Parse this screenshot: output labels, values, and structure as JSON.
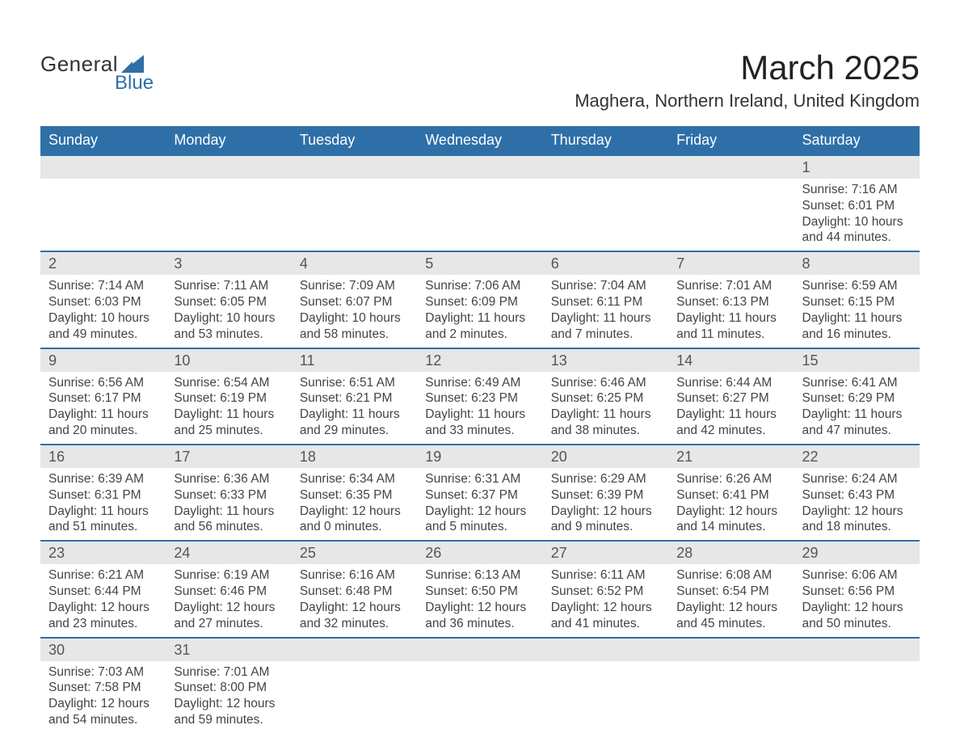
{
  "brand": {
    "top": "General",
    "bottom": "Blue",
    "sail_color": "#2f6fa8",
    "top_color": "#333333",
    "bottom_color": "#2f6fa8"
  },
  "title": "March 2025",
  "location": "Maghera, Northern Ireland, United Kingdom",
  "colors": {
    "header_bg": "#2f6fa8",
    "header_text": "#ffffff",
    "daynum_bg": "#e7e7e7",
    "row_border": "#2f6fa8",
    "body_text": "#444444"
  },
  "headers": [
    "Sunday",
    "Monday",
    "Tuesday",
    "Wednesday",
    "Thursday",
    "Friday",
    "Saturday"
  ],
  "weeks": [
    [
      null,
      null,
      null,
      null,
      null,
      null,
      {
        "n": "1",
        "sunrise": "Sunrise: 7:16 AM",
        "sunset": "Sunset: 6:01 PM",
        "dl1": "Daylight: 10 hours",
        "dl2": "and 44 minutes."
      }
    ],
    [
      {
        "n": "2",
        "sunrise": "Sunrise: 7:14 AM",
        "sunset": "Sunset: 6:03 PM",
        "dl1": "Daylight: 10 hours",
        "dl2": "and 49 minutes."
      },
      {
        "n": "3",
        "sunrise": "Sunrise: 7:11 AM",
        "sunset": "Sunset: 6:05 PM",
        "dl1": "Daylight: 10 hours",
        "dl2": "and 53 minutes."
      },
      {
        "n": "4",
        "sunrise": "Sunrise: 7:09 AM",
        "sunset": "Sunset: 6:07 PM",
        "dl1": "Daylight: 10 hours",
        "dl2": "and 58 minutes."
      },
      {
        "n": "5",
        "sunrise": "Sunrise: 7:06 AM",
        "sunset": "Sunset: 6:09 PM",
        "dl1": "Daylight: 11 hours",
        "dl2": "and 2 minutes."
      },
      {
        "n": "6",
        "sunrise": "Sunrise: 7:04 AM",
        "sunset": "Sunset: 6:11 PM",
        "dl1": "Daylight: 11 hours",
        "dl2": "and 7 minutes."
      },
      {
        "n": "7",
        "sunrise": "Sunrise: 7:01 AM",
        "sunset": "Sunset: 6:13 PM",
        "dl1": "Daylight: 11 hours",
        "dl2": "and 11 minutes."
      },
      {
        "n": "8",
        "sunrise": "Sunrise: 6:59 AM",
        "sunset": "Sunset: 6:15 PM",
        "dl1": "Daylight: 11 hours",
        "dl2": "and 16 minutes."
      }
    ],
    [
      {
        "n": "9",
        "sunrise": "Sunrise: 6:56 AM",
        "sunset": "Sunset: 6:17 PM",
        "dl1": "Daylight: 11 hours",
        "dl2": "and 20 minutes."
      },
      {
        "n": "10",
        "sunrise": "Sunrise: 6:54 AM",
        "sunset": "Sunset: 6:19 PM",
        "dl1": "Daylight: 11 hours",
        "dl2": "and 25 minutes."
      },
      {
        "n": "11",
        "sunrise": "Sunrise: 6:51 AM",
        "sunset": "Sunset: 6:21 PM",
        "dl1": "Daylight: 11 hours",
        "dl2": "and 29 minutes."
      },
      {
        "n": "12",
        "sunrise": "Sunrise: 6:49 AM",
        "sunset": "Sunset: 6:23 PM",
        "dl1": "Daylight: 11 hours",
        "dl2": "and 33 minutes."
      },
      {
        "n": "13",
        "sunrise": "Sunrise: 6:46 AM",
        "sunset": "Sunset: 6:25 PM",
        "dl1": "Daylight: 11 hours",
        "dl2": "and 38 minutes."
      },
      {
        "n": "14",
        "sunrise": "Sunrise: 6:44 AM",
        "sunset": "Sunset: 6:27 PM",
        "dl1": "Daylight: 11 hours",
        "dl2": "and 42 minutes."
      },
      {
        "n": "15",
        "sunrise": "Sunrise: 6:41 AM",
        "sunset": "Sunset: 6:29 PM",
        "dl1": "Daylight: 11 hours",
        "dl2": "and 47 minutes."
      }
    ],
    [
      {
        "n": "16",
        "sunrise": "Sunrise: 6:39 AM",
        "sunset": "Sunset: 6:31 PM",
        "dl1": "Daylight: 11 hours",
        "dl2": "and 51 minutes."
      },
      {
        "n": "17",
        "sunrise": "Sunrise: 6:36 AM",
        "sunset": "Sunset: 6:33 PM",
        "dl1": "Daylight: 11 hours",
        "dl2": "and 56 minutes."
      },
      {
        "n": "18",
        "sunrise": "Sunrise: 6:34 AM",
        "sunset": "Sunset: 6:35 PM",
        "dl1": "Daylight: 12 hours",
        "dl2": "and 0 minutes."
      },
      {
        "n": "19",
        "sunrise": "Sunrise: 6:31 AM",
        "sunset": "Sunset: 6:37 PM",
        "dl1": "Daylight: 12 hours",
        "dl2": "and 5 minutes."
      },
      {
        "n": "20",
        "sunrise": "Sunrise: 6:29 AM",
        "sunset": "Sunset: 6:39 PM",
        "dl1": "Daylight: 12 hours",
        "dl2": "and 9 minutes."
      },
      {
        "n": "21",
        "sunrise": "Sunrise: 6:26 AM",
        "sunset": "Sunset: 6:41 PM",
        "dl1": "Daylight: 12 hours",
        "dl2": "and 14 minutes."
      },
      {
        "n": "22",
        "sunrise": "Sunrise: 6:24 AM",
        "sunset": "Sunset: 6:43 PM",
        "dl1": "Daylight: 12 hours",
        "dl2": "and 18 minutes."
      }
    ],
    [
      {
        "n": "23",
        "sunrise": "Sunrise: 6:21 AM",
        "sunset": "Sunset: 6:44 PM",
        "dl1": "Daylight: 12 hours",
        "dl2": "and 23 minutes."
      },
      {
        "n": "24",
        "sunrise": "Sunrise: 6:19 AM",
        "sunset": "Sunset: 6:46 PM",
        "dl1": "Daylight: 12 hours",
        "dl2": "and 27 minutes."
      },
      {
        "n": "25",
        "sunrise": "Sunrise: 6:16 AM",
        "sunset": "Sunset: 6:48 PM",
        "dl1": "Daylight: 12 hours",
        "dl2": "and 32 minutes."
      },
      {
        "n": "26",
        "sunrise": "Sunrise: 6:13 AM",
        "sunset": "Sunset: 6:50 PM",
        "dl1": "Daylight: 12 hours",
        "dl2": "and 36 minutes."
      },
      {
        "n": "27",
        "sunrise": "Sunrise: 6:11 AM",
        "sunset": "Sunset: 6:52 PM",
        "dl1": "Daylight: 12 hours",
        "dl2": "and 41 minutes."
      },
      {
        "n": "28",
        "sunrise": "Sunrise: 6:08 AM",
        "sunset": "Sunset: 6:54 PM",
        "dl1": "Daylight: 12 hours",
        "dl2": "and 45 minutes."
      },
      {
        "n": "29",
        "sunrise": "Sunrise: 6:06 AM",
        "sunset": "Sunset: 6:56 PM",
        "dl1": "Daylight: 12 hours",
        "dl2": "and 50 minutes."
      }
    ],
    [
      {
        "n": "30",
        "sunrise": "Sunrise: 7:03 AM",
        "sunset": "Sunset: 7:58 PM",
        "dl1": "Daylight: 12 hours",
        "dl2": "and 54 minutes."
      },
      {
        "n": "31",
        "sunrise": "Sunrise: 7:01 AM",
        "sunset": "Sunset: 8:00 PM",
        "dl1": "Daylight: 12 hours",
        "dl2": "and 59 minutes."
      },
      null,
      null,
      null,
      null,
      null
    ]
  ]
}
